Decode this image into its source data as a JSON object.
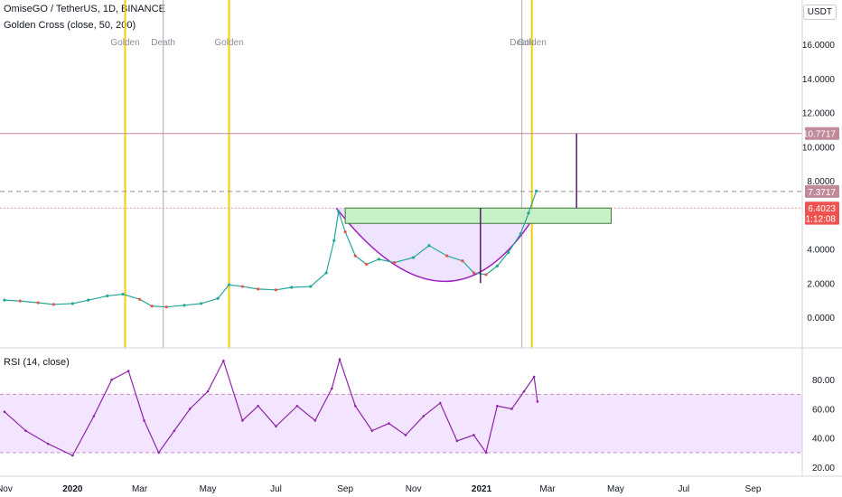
{
  "header": {
    "symbol_line": "OmiseGO / TetherUS, 1D, BINANCE",
    "indicator_line": "Golden Cross (close, 50, 200)",
    "currency_badge": "USDT"
  },
  "rsi_header": "RSI (14, close)",
  "chart_data": [
    {
      "type": "line",
      "title": "OmiseGO / TetherUS, 1D, BINANCE",
      "series": [
        {
          "name": "",
          "x": [
            "2019-11-01",
            "2019-11-15",
            "2019-12-01",
            "2019-12-15",
            "2020-01-01",
            "2020-01-15",
            "2020-02-01",
            "2020-02-15",
            "2020-03-01",
            "2020-03-12",
            "2020-03-25",
            "2020-04-10",
            "2020-04-25",
            "2020-05-10",
            "2020-05-20",
            "2020-06-01",
            "2020-06-15",
            "2020-07-01",
            "2020-07-15",
            "2020-08-01",
            "2020-08-15",
            "2020-08-22",
            "2020-08-26",
            "2020-09-01",
            "2020-09-10",
            "2020-09-20",
            "2020-10-01",
            "2020-10-15",
            "2020-11-01",
            "2020-11-15",
            "2020-12-01",
            "2020-12-15",
            "2020-12-25",
            "2021-01-05",
            "2021-01-15",
            "2021-01-25",
            "2021-02-05",
            "2021-02-12",
            "2021-02-19"
          ],
          "y": [
            1.0,
            0.95,
            0.85,
            0.75,
            0.8,
            1.0,
            1.25,
            1.35,
            1.05,
            0.65,
            0.6,
            0.7,
            0.8,
            1.1,
            1.9,
            1.8,
            1.65,
            1.6,
            1.75,
            1.8,
            2.6,
            4.5,
            6.2,
            5.0,
            3.6,
            3.1,
            3.4,
            3.2,
            3.5,
            4.2,
            3.6,
            3.3,
            2.6,
            2.5,
            3.0,
            3.8,
            4.9,
            6.1,
            7.4
          ]
        }
      ],
      "yticks": [
        "0.0000",
        "2.0000",
        "4.0000",
        "6.0000",
        "8.0000",
        "10.0000",
        "12.0000",
        "14.0000",
        "16.0000"
      ],
      "ylim": [
        -1.8,
        18.6
      ],
      "xticks": [
        {
          "label": "Nov",
          "date": "2019-11-01"
        },
        {
          "label": "2020",
          "date": "2020-01-01"
        },
        {
          "label": "Mar",
          "date": "2020-03-01"
        },
        {
          "label": "May",
          "date": "2020-05-01"
        },
        {
          "label": "Jul",
          "date": "2020-07-01"
        },
        {
          "label": "Sep",
          "date": "2020-09-01"
        },
        {
          "label": "Nov",
          "date": "2020-11-01"
        },
        {
          "label": "2021",
          "date": "2021-01-01"
        },
        {
          "label": "Mar",
          "date": "2021-03-01"
        },
        {
          "label": "May",
          "date": "2021-05-01"
        },
        {
          "label": "Jul",
          "date": "2021-07-01"
        },
        {
          "label": "Sep",
          "date": "2021-09-01"
        }
      ],
      "xlim": [
        "2019-10-28",
        "2021-10-15"
      ],
      "price_labels": [
        {
          "text": "10.7717",
          "value": 10.7717,
          "color": "#c08a9a"
        },
        {
          "text": "7.3717",
          "value": 7.3717,
          "color": "#c08a9a"
        },
        {
          "text": "6.4023",
          "value": 6.4023,
          "color": "#ef5350"
        },
        {
          "text": "01:12:08",
          "value": 5.8,
          "color": "#ef5350"
        }
      ],
      "horizontal_lines": [
        {
          "value": 10.7717,
          "style": "solid",
          "color": "#c08a9a"
        },
        {
          "value": 7.3717,
          "style": "dashed",
          "color": "#9e8a90"
        },
        {
          "value": 6.4023,
          "style": "dotted",
          "color": "#ef9a9a"
        }
      ],
      "crosses": [
        {
          "label": "Golden",
          "date": "2020-02-17",
          "color": "#f5d000"
        },
        {
          "label": "Death",
          "date": "2020-03-22",
          "color": "#b8b8b8"
        },
        {
          "label": "Golden",
          "date": "2020-05-20",
          "color": "#f5d000"
        },
        {
          "label": "Death",
          "date": "2021-02-06",
          "color": "#b8b8b8"
        },
        {
          "label": "Golden",
          "date": "2021-02-15",
          "color": "#f5d000"
        }
      ],
      "annotations": {
        "rectangle": {
          "x0": "2020-09-01",
          "x1": "2021-04-27",
          "y0": 5.5,
          "y1": 6.4,
          "fill": "#c8f0c8",
          "stroke": "#3a7a3a"
        },
        "cup_arc": {
          "x0": "2020-08-24",
          "x_mid": "2020-12-05",
          "x1": "2021-02-22",
          "top": 6.4,
          "bottom": 2.1,
          "fill": "#e8d8ff",
          "stroke": "#a020c0"
        },
        "handle_line": {
          "date": "2020-12-31",
          "y0": 6.4,
          "y1": 2.0,
          "color": "#5a1a6a"
        },
        "target_line": {
          "date": "2021-03-27",
          "y0": 6.4,
          "y1": 10.7717,
          "color": "#5a1a6a"
        }
      }
    },
    {
      "type": "line",
      "title": "RSI (14, close)",
      "series": [
        {
          "name": "",
          "x": [
            "2019-11-01",
            "2019-11-20",
            "2019-12-10",
            "2020-01-01",
            "2020-01-20",
            "2020-02-05",
            "2020-02-20",
            "2020-03-05",
            "2020-03-18",
            "2020-04-01",
            "2020-04-15",
            "2020-05-01",
            "2020-05-15",
            "2020-06-01",
            "2020-06-15",
            "2020-07-01",
            "2020-07-20",
            "2020-08-05",
            "2020-08-20",
            "2020-08-27",
            "2020-09-10",
            "2020-09-25",
            "2020-10-10",
            "2020-10-25",
            "2020-11-10",
            "2020-11-25",
            "2020-12-10",
            "2020-12-25",
            "2021-01-05",
            "2021-01-15",
            "2021-01-28",
            "2021-02-08",
            "2021-02-17",
            "2021-02-20"
          ],
          "y": [
            58,
            45,
            36,
            28,
            55,
            80,
            86,
            52,
            30,
            45,
            60,
            72,
            93,
            52,
            62,
            48,
            62,
            52,
            74,
            94,
            62,
            45,
            50,
            42,
            55,
            64,
            38,
            42,
            30,
            62,
            60,
            72,
            82,
            65
          ]
        }
      ],
      "yticks": [
        "20.00",
        "40.00",
        "60.00",
        "80.00"
      ],
      "ylim": [
        15,
        100
      ],
      "band": [
        30,
        70
      ]
    }
  ]
}
